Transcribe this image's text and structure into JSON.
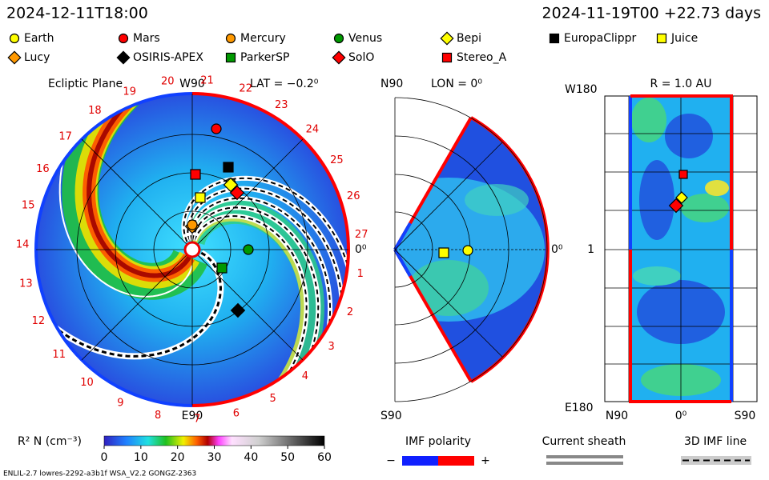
{
  "header": {
    "left": "2024-12-11T18:00",
    "right": "2024-11-19T00 +22.73 days"
  },
  "bodies": [
    {
      "name": "Earth",
      "color": "#ffff00",
      "shape": "circle"
    },
    {
      "name": "Mars",
      "color": "#ff0000",
      "shape": "circle"
    },
    {
      "name": "Mercury",
      "color": "#ff9900",
      "shape": "circle"
    },
    {
      "name": "Venus",
      "color": "#009900",
      "shape": "circle"
    },
    {
      "name": "Bepi",
      "color": "#ffff00",
      "shape": "diamond"
    },
    {
      "name": "EuropaClippr",
      "color": "#000000",
      "shape": "square"
    },
    {
      "name": "Juice",
      "color": "#ffff00",
      "shape": "square"
    },
    {
      "name": "Lucy",
      "color": "#ff9900",
      "shape": "diamond"
    },
    {
      "name": "OSIRIS-APEX",
      "color": "#000000",
      "shape": "diamond"
    },
    {
      "name": "ParkerSP",
      "color": "#009900",
      "shape": "square"
    },
    {
      "name": "SolO",
      "color": "#ff0000",
      "shape": "diamond"
    },
    {
      "name": "Stereo_A",
      "color": "#ff0000",
      "shape": "square"
    }
  ],
  "ecliptic": {
    "title": "Ecliptic Plane",
    "top": "W90",
    "lat": "LAT = −0.2⁰",
    "right": "0⁰",
    "bottom": "E90",
    "sectors": [
      1,
      2,
      3,
      4,
      5,
      6,
      7,
      8,
      9,
      10,
      11,
      12,
      13,
      14,
      15,
      16,
      17,
      18,
      19,
      20,
      21,
      22,
      23,
      24,
      25,
      26,
      27
    ]
  },
  "meridional": {
    "top": "N90",
    "lon": "LON = 0⁰",
    "right": "0⁰",
    "bottom": "S90"
  },
  "sphere": {
    "title": "R = 1.0 AU",
    "top_left": "W180",
    "middle_left": "1",
    "bottom_left": "E180",
    "bottom_labels": [
      "N90",
      "0⁰",
      "S90"
    ]
  },
  "colorbar": {
    "label": "R² N (cm⁻³)",
    "range": [
      0,
      60
    ],
    "ticks": [
      0,
      10,
      20,
      30,
      40,
      50,
      60
    ]
  },
  "keys": {
    "imf": "IMF polarity",
    "minus": "−",
    "plus": "+",
    "sheath": "Current sheath",
    "line3d": "3D IMF line"
  },
  "footer": "ENLIL-2.7 lowres-2292-a3b1f WSA_V2.2 GONGZ-2363"
}
